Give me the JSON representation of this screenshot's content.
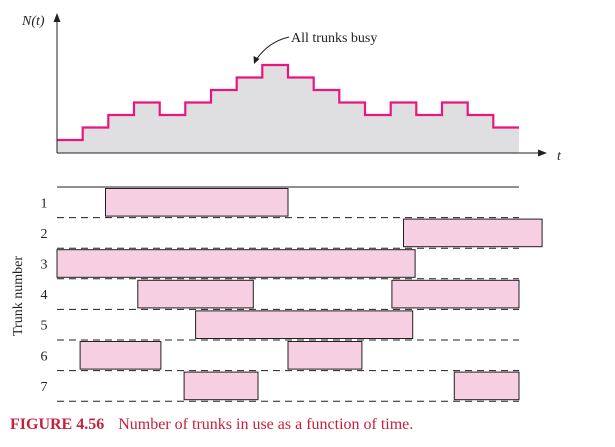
{
  "colors": {
    "step_line": "#e8177f",
    "area_fill": "#dfdfe1",
    "bar_fill": "#f7cfe2",
    "caption": "#c8203a",
    "ink": "#231f20"
  },
  "top_plot": {
    "y_axis_label": "N(t)",
    "x_axis_label": "t",
    "annotation": "All trunks busy",
    "step_levels": [
      1,
      2,
      3,
      4,
      3,
      4,
      5,
      6,
      7,
      6,
      5,
      4,
      3,
      4,
      3,
      4,
      3,
      2
    ]
  },
  "trunk_chart": {
    "y_axis_label": "Trunk number",
    "trunks": [
      {
        "label": "1",
        "busy": [
          [
            0.21,
            1.0
          ]
        ]
      },
      {
        "label": "2",
        "busy": [
          [
            1.5,
            2.1
          ]
        ]
      },
      {
        "label": "3",
        "busy": [
          [
            0.0,
            1.55
          ]
        ]
      },
      {
        "label": "4",
        "busy": [
          [
            0.35,
            0.85
          ],
          [
            1.45,
            2.0
          ]
        ]
      },
      {
        "label": "5",
        "busy": [
          [
            0.6,
            1.54
          ]
        ]
      },
      {
        "label": "6",
        "busy": [
          [
            0.1,
            0.45
          ],
          [
            1.0,
            1.32
          ]
        ]
      },
      {
        "label": "7",
        "busy": [
          [
            0.55,
            0.87
          ],
          [
            1.72,
            2.0
          ]
        ]
      }
    ]
  },
  "caption": {
    "label": "FIGURE 4.56",
    "text": "Number of trunks in use as a function of time."
  }
}
